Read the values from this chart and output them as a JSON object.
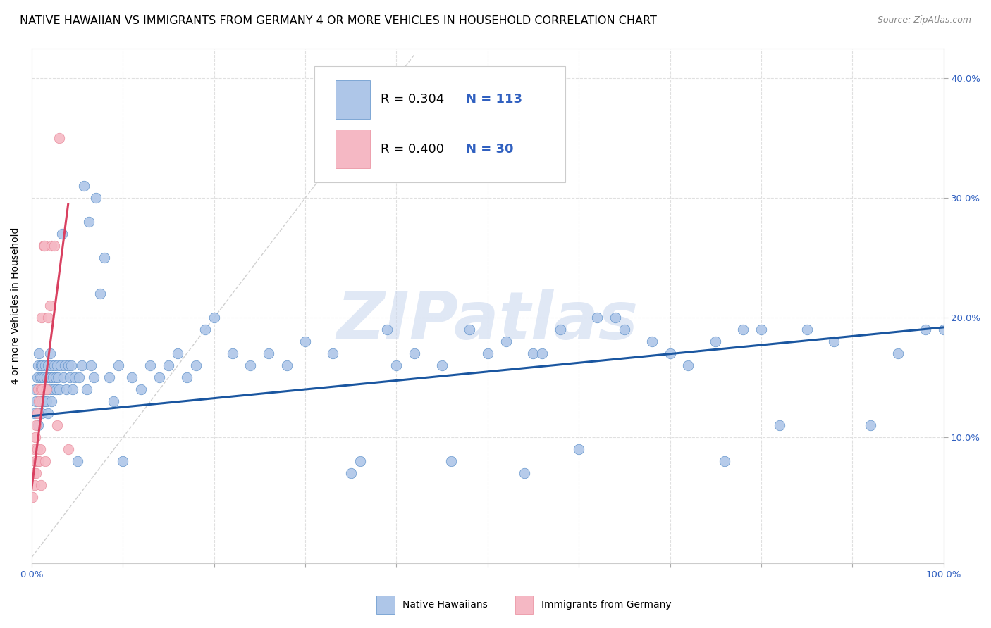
{
  "title": "NATIVE HAWAIIAN VS IMMIGRANTS FROM GERMANY 4 OR MORE VEHICLES IN HOUSEHOLD CORRELATION CHART",
  "source": "Source: ZipAtlas.com",
  "ylabel": "4 or more Vehicles in Household",
  "legend1_label": "Native Hawaiians",
  "legend2_label": "Immigrants from Germany",
  "legend1_R": "0.304",
  "legend1_N": "113",
  "legend2_R": "0.400",
  "legend2_N": "30",
  "color_blue": "#aec6e8",
  "color_pink": "#f5b8c4",
  "color_blue_dark": "#5b8fc9",
  "color_pink_dark": "#e88899",
  "color_trend_blue": "#1a56a0",
  "color_trend_pink": "#d94060",
  "color_diagonal": "#d0d0d0",
  "color_grid": "#e0e0e0",
  "color_R_value": "#3060c0",
  "color_N_value": "#3060c0",
  "xlim": [
    0.0,
    1.0
  ],
  "ylim": [
    -0.005,
    0.425
  ],
  "blue_x": [
    0.003,
    0.004,
    0.005,
    0.006,
    0.007,
    0.007,
    0.008,
    0.008,
    0.009,
    0.009,
    0.01,
    0.01,
    0.011,
    0.011,
    0.012,
    0.012,
    0.013,
    0.013,
    0.014,
    0.015,
    0.015,
    0.016,
    0.016,
    0.017,
    0.018,
    0.018,
    0.019,
    0.02,
    0.02,
    0.021,
    0.022,
    0.022,
    0.023,
    0.024,
    0.025,
    0.026,
    0.027,
    0.028,
    0.029,
    0.03,
    0.032,
    0.033,
    0.035,
    0.036,
    0.038,
    0.04,
    0.042,
    0.043,
    0.045,
    0.047,
    0.05,
    0.052,
    0.055,
    0.057,
    0.06,
    0.063,
    0.065,
    0.068,
    0.07,
    0.075,
    0.08,
    0.085,
    0.09,
    0.095,
    0.1,
    0.11,
    0.12,
    0.13,
    0.14,
    0.15,
    0.16,
    0.17,
    0.18,
    0.19,
    0.2,
    0.22,
    0.24,
    0.26,
    0.28,
    0.3,
    0.33,
    0.36,
    0.39,
    0.42,
    0.45,
    0.48,
    0.52,
    0.55,
    0.58,
    0.62,
    0.65,
    0.68,
    0.72,
    0.75,
    0.78,
    0.82,
    0.85,
    0.88,
    0.92,
    0.95,
    0.98,
    1.0,
    0.35,
    0.4,
    0.46,
    0.5,
    0.54,
    0.56,
    0.6,
    0.64,
    0.7,
    0.76,
    0.8
  ],
  "blue_y": [
    0.12,
    0.14,
    0.13,
    0.15,
    0.11,
    0.16,
    0.12,
    0.17,
    0.13,
    0.15,
    0.14,
    0.16,
    0.12,
    0.15,
    0.13,
    0.16,
    0.14,
    0.15,
    0.13,
    0.14,
    0.16,
    0.13,
    0.15,
    0.14,
    0.16,
    0.12,
    0.15,
    0.17,
    0.14,
    0.15,
    0.16,
    0.13,
    0.15,
    0.14,
    0.16,
    0.15,
    0.14,
    0.16,
    0.15,
    0.14,
    0.16,
    0.27,
    0.15,
    0.16,
    0.14,
    0.16,
    0.15,
    0.16,
    0.14,
    0.15,
    0.08,
    0.15,
    0.16,
    0.31,
    0.14,
    0.28,
    0.16,
    0.15,
    0.3,
    0.22,
    0.25,
    0.15,
    0.13,
    0.16,
    0.08,
    0.15,
    0.14,
    0.16,
    0.15,
    0.16,
    0.17,
    0.15,
    0.16,
    0.19,
    0.2,
    0.17,
    0.16,
    0.17,
    0.16,
    0.18,
    0.17,
    0.08,
    0.19,
    0.17,
    0.16,
    0.19,
    0.18,
    0.17,
    0.19,
    0.2,
    0.19,
    0.18,
    0.16,
    0.18,
    0.19,
    0.11,
    0.19,
    0.18,
    0.11,
    0.17,
    0.19,
    0.19,
    0.07,
    0.16,
    0.08,
    0.17,
    0.07,
    0.17,
    0.09,
    0.2,
    0.17,
    0.08,
    0.19
  ],
  "pink_x": [
    0.001,
    0.002,
    0.003,
    0.003,
    0.004,
    0.004,
    0.005,
    0.005,
    0.006,
    0.006,
    0.007,
    0.007,
    0.008,
    0.008,
    0.009,
    0.01,
    0.01,
    0.011,
    0.012,
    0.013,
    0.014,
    0.015,
    0.016,
    0.018,
    0.02,
    0.022,
    0.025,
    0.028,
    0.03,
    0.04
  ],
  "pink_y": [
    0.05,
    0.07,
    0.06,
    0.09,
    0.08,
    0.1,
    0.07,
    0.11,
    0.09,
    0.12,
    0.08,
    0.14,
    0.08,
    0.13,
    0.09,
    0.06,
    0.14,
    0.2,
    0.14,
    0.26,
    0.26,
    0.08,
    0.14,
    0.2,
    0.21,
    0.26,
    0.26,
    0.11,
    0.35,
    0.09
  ],
  "trend_blue_x0": 0.0,
  "trend_blue_x1": 1.0,
  "trend_blue_y0": 0.118,
  "trend_blue_y1": 0.192,
  "trend_pink_x0": 0.0,
  "trend_pink_x1": 0.04,
  "trend_pink_y0": 0.058,
  "trend_pink_y1": 0.295,
  "watermark": "ZIPatlas",
  "watermark_color": "#ccd9ef",
  "background_color": "#ffffff",
  "title_fontsize": 11.5,
  "axis_label_fontsize": 10,
  "tick_fontsize": 9.5,
  "source_fontsize": 9
}
